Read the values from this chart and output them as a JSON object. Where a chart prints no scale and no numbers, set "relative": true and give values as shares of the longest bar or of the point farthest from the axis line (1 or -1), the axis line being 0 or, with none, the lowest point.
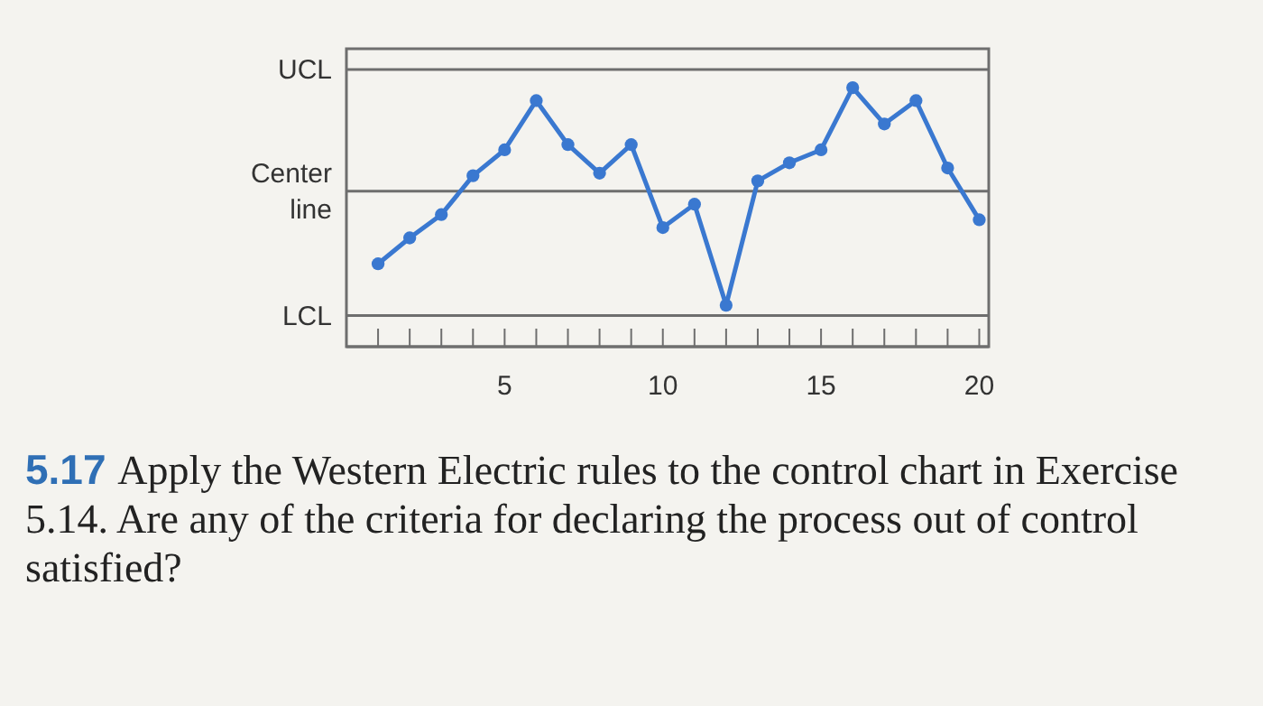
{
  "chart_data": {
    "type": "line",
    "relative": true,
    "x": [
      1,
      2,
      3,
      4,
      5,
      6,
      7,
      8,
      9,
      10,
      11,
      12,
      13,
      14,
      15,
      16,
      17,
      18,
      19,
      20
    ],
    "series": [
      {
        "color": "#3a78d0",
        "values": [
          0.32,
          0.42,
          0.51,
          0.66,
          0.76,
          0.95,
          0.78,
          0.67,
          0.78,
          0.46,
          0.55,
          0.16,
          0.64,
          0.71,
          0.76,
          1,
          0.86,
          0.95,
          0.69,
          0.49
        ]
      }
    ],
    "xlim": [
      0,
      20.3
    ],
    "xticks": [
      {
        "value": 1,
        "label": null
      },
      {
        "value": 2,
        "label": null
      },
      {
        "value": 3,
        "label": null
      },
      {
        "value": 4,
        "label": null
      },
      5,
      {
        "value": 6,
        "label": null
      },
      {
        "value": 7,
        "label": null
      },
      {
        "value": 8,
        "label": null
      },
      {
        "value": 9,
        "label": null
      },
      10,
      {
        "value": 11,
        "label": null
      },
      {
        "value": 12,
        "label": null
      },
      {
        "value": 13,
        "label": null
      },
      {
        "value": 14,
        "label": null
      },
      15,
      {
        "value": 16,
        "label": null
      },
      {
        "value": 17,
        "label": null
      },
      {
        "value": 18,
        "label": null
      },
      {
        "value": 19,
        "label": null
      },
      20
    ],
    "ref_lines": [
      {
        "axis": "y",
        "value": 1.07,
        "label": "UCL"
      },
      {
        "axis": "y",
        "value": 0.6,
        "label": "Center line"
      },
      {
        "axis": "y",
        "value": 0.12,
        "label": "LCL"
      }
    ],
    "marker": "circle",
    "line_style": "solid",
    "grid": false,
    "annotations": [
      "5.17 Apply the Western Electric rules to the control chart in Exercise 5.14. Are any of the criteria for declaring the process out of control satisfied?"
    ]
  }
}
